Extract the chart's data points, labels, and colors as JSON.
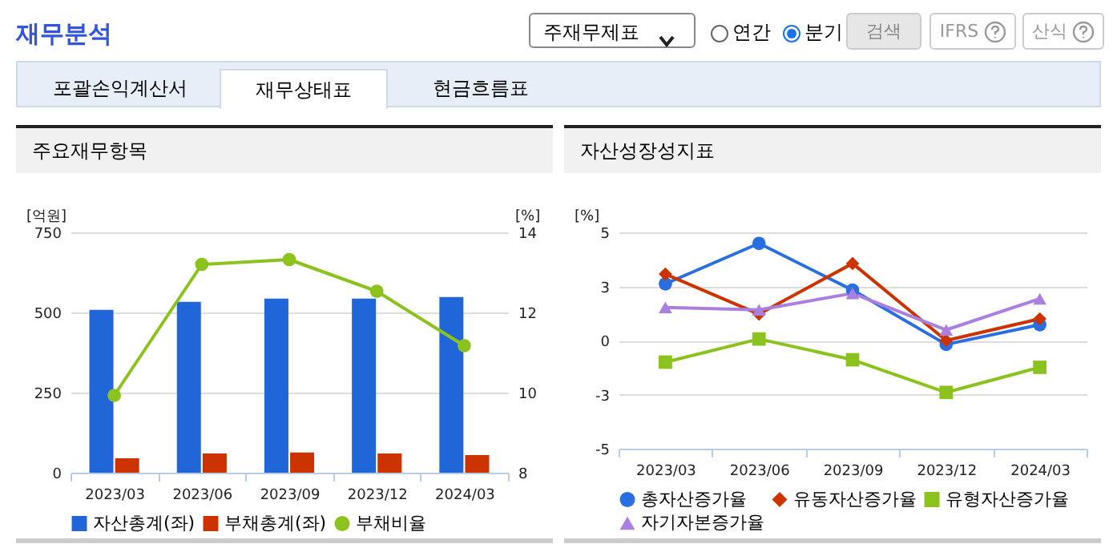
{
  "chart_data": [
    {
      "type": "other",
      "title": "재무분석",
      "annotations": [
        "주재무제표",
        "연간",
        "분기",
        "검색",
        "IFRS",
        "산식",
        "포괄손익계산서",
        "재무상태표",
        "현금흐름표"
      ]
    },
    {
      "type": "bar",
      "title": "주요재무항목",
      "categories": [
        "2023/03",
        "2023/06",
        "2023/09",
        "2023/12",
        "2024/03"
      ],
      "ylabel": "[억원]",
      "y2label": "[%]",
      "ylim": [
        0,
        750
      ],
      "yticks": [
        0,
        250,
        500,
        750
      ],
      "y2lim": [
        8,
        14
      ],
      "y2ticks": [
        8,
        10,
        12,
        14
      ],
      "grid": "y",
      "legend": "bottom",
      "series": [
        {
          "name": "자산총계(좌)",
          "type": "bar",
          "color": "#2166d9",
          "values": [
            508,
            533,
            543,
            543,
            548
          ]
        },
        {
          "name": "부채총계(좌)",
          "type": "bar",
          "color": "#cc3300",
          "values": [
            45,
            60,
            63,
            60,
            55
          ]
        },
        {
          "name": "부채비율",
          "type": "line",
          "axis": "y2",
          "marker": "circle",
          "color": "#8cc21e",
          "values": [
            9.93,
            13.2,
            13.32,
            12.53,
            11.17
          ]
        }
      ]
    },
    {
      "type": "line",
      "title": "자산성장성지표",
      "categories": [
        "2023/03",
        "2023/06",
        "2023/09",
        "2023/12",
        "2024/03"
      ],
      "ylabel": "[%]",
      "ylim": [
        -5,
        5
      ],
      "yticks": [
        {
          "value": -5,
          "label": "-5"
        },
        {
          "value": -2.5,
          "label": "-3"
        },
        {
          "value": 0,
          "label": "0"
        },
        {
          "value": 2.5,
          "label": "3"
        },
        {
          "value": 5,
          "label": "5"
        }
      ],
      "grid": "y",
      "legend": "bottom",
      "series": [
        {
          "name": "총자산증가율",
          "marker": "circle",
          "color": "#2a6ee0",
          "values": [
            2.62,
            4.49,
            2.33,
            -0.18,
            0.73
          ]
        },
        {
          "name": "유동자산증가율",
          "marker": "diamond",
          "color": "#cc3300",
          "values": [
            3.07,
            1.22,
            3.56,
            0.0,
            1.0
          ]
        },
        {
          "name": "유형자산증가율",
          "marker": "square",
          "color": "#8cc21e",
          "values": [
            -1.0,
            0.07,
            -0.89,
            -2.4,
            -1.24
          ]
        },
        {
          "name": "자기자본증가율",
          "marker": "triangle",
          "color": "#a97fe0",
          "values": [
            1.53,
            1.42,
            2.18,
            0.49,
            1.93
          ]
        }
      ]
    }
  ]
}
